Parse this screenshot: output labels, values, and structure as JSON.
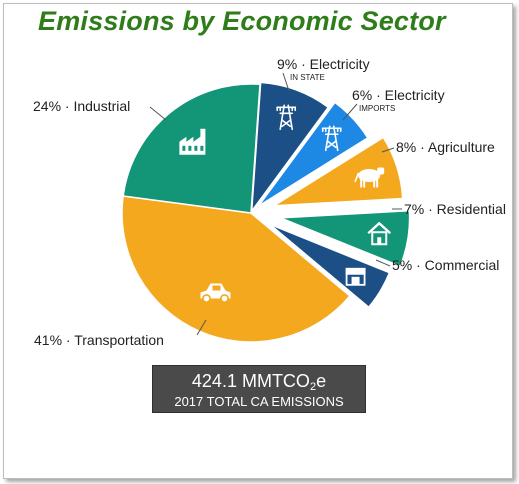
{
  "chart_data": {
    "type": "pie",
    "title": "Emissions by Economic Sector",
    "slices": [
      {
        "pct_label": "9%",
        "name": "Electricity",
        "sub": "IN STATE",
        "value": 9,
        "color": "#1b4f86",
        "icon": "power-tower-icon"
      },
      {
        "pct_label": "6%",
        "name": "Electricity",
        "sub": "IMPORTS",
        "value": 6,
        "color": "#1e88e5",
        "icon": "power-tower-icon"
      },
      {
        "pct_label": "8%",
        "name": "Agriculture",
        "value": 8,
        "color": "#f4a81d",
        "icon": "cow-icon"
      },
      {
        "pct_label": "7%",
        "name": "Residential",
        "value": 7,
        "color": "#139577",
        "icon": "house-icon"
      },
      {
        "pct_label": "5%",
        "name": "Commercial",
        "value": 5,
        "color": "#1b4f86",
        "icon": "storefront-icon"
      },
      {
        "pct_label": "41%",
        "name": "Transportation",
        "value": 41,
        "color": "#f4a81d",
        "icon": "car-icon"
      },
      {
        "pct_label": "24%",
        "name": "Industrial",
        "value": 24,
        "color": "#139577",
        "icon": "factory-icon"
      }
    ]
  },
  "summary": {
    "value_prefix": "424.1 MMTCO",
    "value_sub": "2",
    "value_suffix": "e",
    "caption": "2017 TOTAL CA EMISSIONS"
  }
}
